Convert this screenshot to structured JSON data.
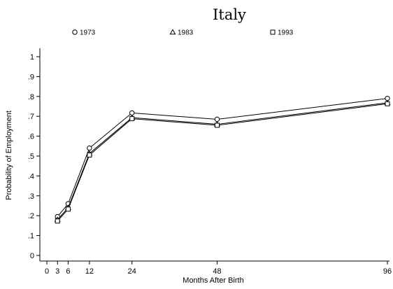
{
  "chart_data": {
    "type": "line",
    "title": "Italy",
    "xlabel": "Months After Birth",
    "ylabel": "Probability of Employment",
    "x": [
      3,
      6,
      12,
      24,
      48,
      96
    ],
    "x_ticks": [
      0,
      3,
      6,
      12,
      24,
      48,
      96
    ],
    "x_tick_labels": [
      "0",
      "3",
      "6",
      "12",
      "24",
      "48",
      "96"
    ],
    "xlim": [
      0,
      96
    ],
    "y_ticks": [
      0,
      0.1,
      0.2,
      0.3,
      0.4,
      0.5,
      0.6,
      0.7,
      0.8,
      0.9,
      1
    ],
    "y_tick_labels": [
      "0",
      ".1",
      ".2",
      ".3",
      ".4",
      ".5",
      ".6",
      ".7",
      ".8",
      ".9",
      "1"
    ],
    "ylim": [
      0,
      1
    ],
    "grid": false,
    "legend_position": "top",
    "series": [
      {
        "name": "1973",
        "marker": "circle",
        "color": "#000000",
        "values": [
          0.195,
          0.26,
          0.54,
          0.717,
          0.685,
          0.79
        ]
      },
      {
        "name": "1983",
        "marker": "triangle",
        "color": "#000000",
        "values": [
          0.18,
          0.24,
          0.513,
          0.693,
          0.66,
          0.768
        ]
      },
      {
        "name": "1993",
        "marker": "square",
        "color": "#000000",
        "values": [
          0.173,
          0.233,
          0.505,
          0.688,
          0.655,
          0.763
        ]
      }
    ]
  }
}
